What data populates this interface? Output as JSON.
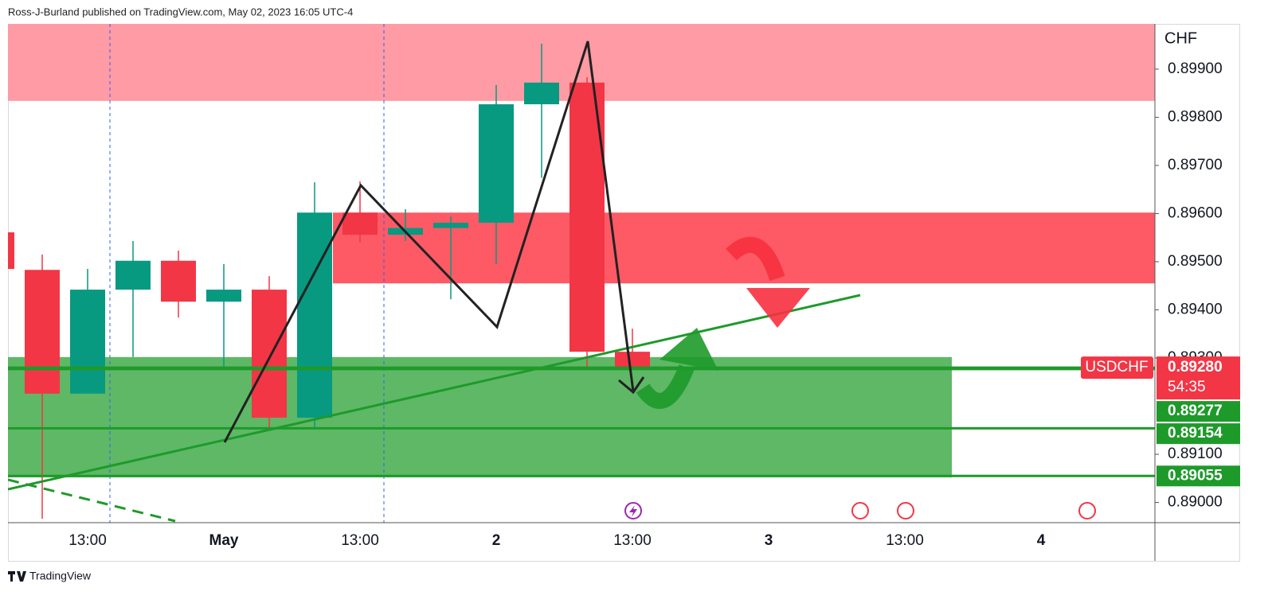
{
  "header": "Ross-J-Burland published on TradingView.com, May 02, 2023 16:05 UTC-4",
  "footer": "TradingView",
  "chart_data": {
    "type": "candlestick",
    "currency": "CHF",
    "symbol": "USDCHF",
    "categories": [
      null,
      null,
      "13:00",
      null,
      null,
      "May",
      null,
      null,
      "13:00",
      null,
      null,
      "2",
      null,
      null,
      "13:00",
      null,
      null,
      "3",
      null,
      null,
      "13:00",
      null,
      null,
      "4",
      null,
      null
    ],
    "open": [
      0.89561,
      0.89483,
      0.89226,
      0.89442,
      0.89502,
      0.89417,
      0.89442,
      0.89176,
      0.89602,
      0.89556,
      0.8957,
      0.89581,
      0.89827,
      0.89872,
      0.89313,
      null,
      null,
      null,
      null,
      null,
      null,
      null,
      null,
      null,
      null,
      null
    ],
    "high": [
      0.8957,
      0.89515,
      0.89485,
      0.89543,
      0.89523,
      0.89495,
      0.8947,
      0.89665,
      0.89667,
      0.89609,
      0.89594,
      0.89867,
      0.89953,
      0.89883,
      0.89361,
      null,
      null,
      null,
      null,
      null,
      null,
      null,
      null,
      null,
      null,
      null
    ],
    "low": [
      0.8948,
      0.88966,
      0.89226,
      0.89302,
      0.89384,
      0.8928,
      0.89156,
      0.89156,
      0.8954,
      0.89543,
      0.89422,
      0.89495,
      0.89674,
      0.89275,
      0.8928,
      null,
      null,
      null,
      null,
      null,
      null,
      null,
      null,
      null,
      null,
      null
    ],
    "close": [
      0.89485,
      0.89226,
      0.89442,
      0.89502,
      0.89417,
      0.89442,
      0.89176,
      0.89602,
      0.89556,
      0.8957,
      0.89581,
      0.89827,
      0.89872,
      0.89313,
      0.8928,
      null,
      null,
      null,
      null,
      null,
      null,
      null,
      null,
      null,
      null,
      null
    ],
    "up_color": "#089981",
    "down_color": "#f23645",
    "ylim": [
      0.88958,
      0.89994
    ],
    "yticks": [
      {
        "value": 0.89,
        "label": "0.89000"
      },
      {
        "value": 0.891,
        "label": "0.89100"
      },
      {
        "value": 0.893,
        "label": "0.89300"
      },
      {
        "value": 0.894,
        "label": "0.89400"
      },
      {
        "value": 0.895,
        "label": "0.89500"
      },
      {
        "value": 0.896,
        "label": "0.89600"
      },
      {
        "value": 0.897,
        "label": "0.89700"
      },
      {
        "value": 0.898,
        "label": "0.89800"
      },
      {
        "value": 0.899,
        "label": "0.89900"
      }
    ],
    "last_price": {
      "value": 0.8928,
      "label": "0.89280"
    },
    "countdown": "54:35",
    "zones": [
      {
        "low": 0.89834,
        "high": 0.89994,
        "color": "#ff9ba4"
      },
      {
        "low": 0.89455,
        "high": 0.89602,
        "color": "#fd5a66"
      },
      {
        "low": 0.89052,
        "high": 0.89302,
        "color": "#55b45e"
      }
    ],
    "levels": [
      {
        "value": 0.89277,
        "label": "0.89277"
      },
      {
        "value": 0.89154,
        "label": "0.89154"
      },
      {
        "value": 0.89055,
        "label": "0.89055"
      }
    ],
    "level_color": "#1e9a2a"
  }
}
